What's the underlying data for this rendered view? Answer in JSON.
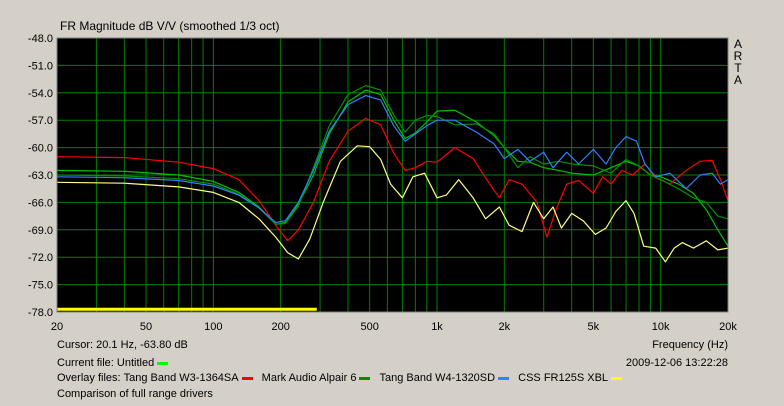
{
  "chart_data": {
    "type": "line",
    "title": "FR Magnitude dB V/V (smoothed 1/3 oct)",
    "xlabel": "Frequency (Hz)",
    "ylabel": "",
    "x_scale": "log",
    "xlim": [
      20,
      20000
    ],
    "ylim": [
      -78.0,
      -48.0
    ],
    "yticks": [
      "-48.0",
      "-51.0",
      "-54.0",
      "-57.0",
      "-60.0",
      "-63.0",
      "-66.0",
      "-69.0",
      "-72.0",
      "-75.0",
      "-78.0"
    ],
    "xticks": [
      "20",
      "50",
      "100",
      "200",
      "500",
      "1k",
      "2k",
      "5k",
      "10k",
      "20k"
    ],
    "grid": true,
    "background": "#000000",
    "grid_color": "#008000",
    "series": [
      {
        "name": "Untitled",
        "color": "#00c000",
        "points": [
          [
            20,
            -62.5
          ],
          [
            40,
            -62.6
          ],
          [
            70,
            -63.0
          ],
          [
            100,
            -63.7
          ],
          [
            130,
            -64.9
          ],
          [
            160,
            -66.5
          ],
          [
            190,
            -68.4
          ],
          [
            210,
            -68.2
          ],
          [
            240,
            -66.2
          ],
          [
            280,
            -63.0
          ],
          [
            330,
            -58.5
          ],
          [
            400,
            -55.0
          ],
          [
            480,
            -53.7
          ],
          [
            560,
            -54.2
          ],
          [
            640,
            -57.0
          ],
          [
            720,
            -59.0
          ],
          [
            800,
            -58.4
          ],
          [
            900,
            -57.2
          ],
          [
            1000,
            -56.0
          ],
          [
            1200,
            -55.9
          ],
          [
            1500,
            -57.2
          ],
          [
            1800,
            -58.7
          ],
          [
            2000,
            -60.0
          ],
          [
            2300,
            -61.5
          ],
          [
            2600,
            -61.6
          ],
          [
            3000,
            -62.2
          ],
          [
            3500,
            -62.5
          ],
          [
            4000,
            -62.8
          ],
          [
            5000,
            -63.0
          ],
          [
            6000,
            -62.2
          ],
          [
            7000,
            -61.5
          ],
          [
            8000,
            -62.0
          ],
          [
            9000,
            -63.0
          ],
          [
            10000,
            -63.2
          ],
          [
            12000,
            -64.0
          ],
          [
            14000,
            -65.0
          ],
          [
            16000,
            -66.8
          ],
          [
            18000,
            -69.0
          ],
          [
            20000,
            -70.8
          ]
        ]
      },
      {
        "name": "Tang Band W3-1364SA",
        "color": "#ff0000",
        "points": [
          [
            20,
            -61.0
          ],
          [
            40,
            -61.1
          ],
          [
            70,
            -61.6
          ],
          [
            100,
            -62.3
          ],
          [
            130,
            -63.5
          ],
          [
            160,
            -65.8
          ],
          [
            190,
            -68.5
          ],
          [
            215,
            -70.2
          ],
          [
            240,
            -69.0
          ],
          [
            280,
            -66.0
          ],
          [
            330,
            -61.5
          ],
          [
            400,
            -58.2
          ],
          [
            480,
            -56.8
          ],
          [
            560,
            -57.5
          ],
          [
            640,
            -60.6
          ],
          [
            720,
            -62.5
          ],
          [
            800,
            -62.2
          ],
          [
            900,
            -61.5
          ],
          [
            1000,
            -61.6
          ],
          [
            1200,
            -60.0
          ],
          [
            1450,
            -61.2
          ],
          [
            1700,
            -63.8
          ],
          [
            1900,
            -65.5
          ],
          [
            2100,
            -63.5
          ],
          [
            2400,
            -64.0
          ],
          [
            2800,
            -66.0
          ],
          [
            3100,
            -69.8
          ],
          [
            3400,
            -66.8
          ],
          [
            3800,
            -64.0
          ],
          [
            4300,
            -63.6
          ],
          [
            5000,
            -65.0
          ],
          [
            5500,
            -63.2
          ],
          [
            6000,
            -64.0
          ],
          [
            6700,
            -62.5
          ],
          [
            7500,
            -63.0
          ],
          [
            8500,
            -61.8
          ],
          [
            9500,
            -63.3
          ],
          [
            11000,
            -64.0
          ],
          [
            13000,
            -62.5
          ],
          [
            15000,
            -61.5
          ],
          [
            17000,
            -61.4
          ],
          [
            18500,
            -63.5
          ],
          [
            20000,
            -65.8
          ]
        ]
      },
      {
        "name": "Mark Audio Alpair 6",
        "color": "#009000",
        "points": [
          [
            20,
            -63.0
          ],
          [
            40,
            -63.1
          ],
          [
            70,
            -63.4
          ],
          [
            100,
            -64.0
          ],
          [
            130,
            -65.1
          ],
          [
            160,
            -66.6
          ],
          [
            190,
            -68.4
          ],
          [
            210,
            -68.3
          ],
          [
            240,
            -66.4
          ],
          [
            280,
            -62.2
          ],
          [
            330,
            -57.6
          ],
          [
            400,
            -54.2
          ],
          [
            480,
            -53.2
          ],
          [
            560,
            -53.7
          ],
          [
            640,
            -56.4
          ],
          [
            720,
            -58.3
          ],
          [
            800,
            -57.0
          ],
          [
            900,
            -56.5
          ],
          [
            1000,
            -56.6
          ],
          [
            1200,
            -57.5
          ],
          [
            1500,
            -57.4
          ],
          [
            1800,
            -58.5
          ],
          [
            2000,
            -60.0
          ],
          [
            2300,
            -62.2
          ],
          [
            2600,
            -61.0
          ],
          [
            3000,
            -61.8
          ],
          [
            3500,
            -61.5
          ],
          [
            4000,
            -61.8
          ],
          [
            5000,
            -62.0
          ],
          [
            6000,
            -62.8
          ],
          [
            7000,
            -61.3
          ],
          [
            8000,
            -62.0
          ],
          [
            9000,
            -63.0
          ],
          [
            10000,
            -63.5
          ],
          [
            12000,
            -64.5
          ],
          [
            14000,
            -65.5
          ],
          [
            16000,
            -66.0
          ],
          [
            18000,
            -67.5
          ],
          [
            20000,
            -67.8
          ]
        ]
      },
      {
        "name": "Tang Band W4-1320SD",
        "color": "#3080ff",
        "points": [
          [
            20,
            -63.2
          ],
          [
            40,
            -63.3
          ],
          [
            70,
            -63.6
          ],
          [
            100,
            -64.2
          ],
          [
            130,
            -65.2
          ],
          [
            160,
            -66.6
          ],
          [
            190,
            -68.2
          ],
          [
            210,
            -68.0
          ],
          [
            240,
            -66.0
          ],
          [
            280,
            -62.5
          ],
          [
            330,
            -58.2
          ],
          [
            400,
            -55.3
          ],
          [
            480,
            -54.3
          ],
          [
            560,
            -54.8
          ],
          [
            640,
            -57.6
          ],
          [
            720,
            -59.3
          ],
          [
            800,
            -58.5
          ],
          [
            900,
            -57.6
          ],
          [
            1000,
            -57.0
          ],
          [
            1200,
            -57.0
          ],
          [
            1500,
            -58.3
          ],
          [
            1800,
            -59.6
          ],
          [
            2000,
            -61.2
          ],
          [
            2300,
            -60.2
          ],
          [
            2600,
            -61.5
          ],
          [
            3000,
            -60.5
          ],
          [
            3300,
            -62.2
          ],
          [
            3800,
            -60.5
          ],
          [
            4300,
            -61.8
          ],
          [
            5000,
            -60.2
          ],
          [
            5700,
            -61.8
          ],
          [
            6300,
            -60.0
          ],
          [
            7000,
            -58.8
          ],
          [
            7800,
            -59.3
          ],
          [
            8500,
            -61.8
          ],
          [
            9500,
            -63.2
          ],
          [
            11000,
            -62.8
          ],
          [
            13000,
            -64.5
          ],
          [
            15000,
            -63.0
          ],
          [
            17000,
            -62.8
          ],
          [
            18500,
            -64.0
          ],
          [
            20000,
            -63.5
          ]
        ]
      },
      {
        "name": "CSS FR125S XBL",
        "color": "#ffff80",
        "points": [
          [
            20,
            -63.8
          ],
          [
            40,
            -63.9
          ],
          [
            70,
            -64.3
          ],
          [
            100,
            -64.9
          ],
          [
            130,
            -66.0
          ],
          [
            160,
            -67.8
          ],
          [
            190,
            -69.8
          ],
          [
            215,
            -71.5
          ],
          [
            240,
            -72.2
          ],
          [
            270,
            -70.0
          ],
          [
            310,
            -66.0
          ],
          [
            370,
            -61.5
          ],
          [
            440,
            -59.8
          ],
          [
            500,
            -59.9
          ],
          [
            560,
            -61.3
          ],
          [
            620,
            -64.0
          ],
          [
            700,
            -65.5
          ],
          [
            780,
            -63.2
          ],
          [
            880,
            -62.8
          ],
          [
            1000,
            -65.5
          ],
          [
            1100,
            -65.2
          ],
          [
            1250,
            -63.5
          ],
          [
            1450,
            -65.5
          ],
          [
            1650,
            -67.8
          ],
          [
            1900,
            -66.5
          ],
          [
            2100,
            -68.5
          ],
          [
            2400,
            -69.2
          ],
          [
            2700,
            -66.0
          ],
          [
            3000,
            -67.8
          ],
          [
            3300,
            -66.5
          ],
          [
            3600,
            -68.8
          ],
          [
            4000,
            -67.2
          ],
          [
            4500,
            -68.0
          ],
          [
            5100,
            -69.5
          ],
          [
            5700,
            -68.8
          ],
          [
            6300,
            -67.0
          ],
          [
            7000,
            -65.8
          ],
          [
            7600,
            -67.2
          ],
          [
            8400,
            -70.8
          ],
          [
            9500,
            -71.0
          ],
          [
            10500,
            -72.5
          ],
          [
            11500,
            -71.0
          ],
          [
            12500,
            -70.4
          ],
          [
            14000,
            -71.0
          ],
          [
            16000,
            -70.2
          ],
          [
            18000,
            -71.2
          ],
          [
            20000,
            -71.0
          ]
        ]
      }
    ]
  },
  "header": {
    "title": "FR Magnitude dB V/V (smoothed 1/3 oct)",
    "brand": [
      "A",
      "R",
      "T",
      "A"
    ]
  },
  "footer": {
    "cursor": "Cursor: 20.1 Hz, -63.80 dB",
    "frequency_label": "Frequency (Hz)",
    "current_file_label": "Current file: Untitled",
    "timestamp": "2009-12-06  13:22:28",
    "overlay_prefix": "Overlay files:",
    "overlays": [
      {
        "name": "Tang Band W3-1364SA",
        "color": "#ff0000"
      },
      {
        "name": "Mark Audio Alpair 6",
        "color": "#009000"
      },
      {
        "name": "Tang Band W4-1320SD",
        "color": "#3080ff"
      },
      {
        "name": "CSS FR125S XBL",
        "color": "#ffff00"
      }
    ],
    "current_file_color": "#00ff00",
    "comment": "Comparison of full range drivers"
  },
  "cursor_bar": {
    "from_hz": 20,
    "to_hz": 290,
    "db": -77.7,
    "color": "#ffff00"
  }
}
